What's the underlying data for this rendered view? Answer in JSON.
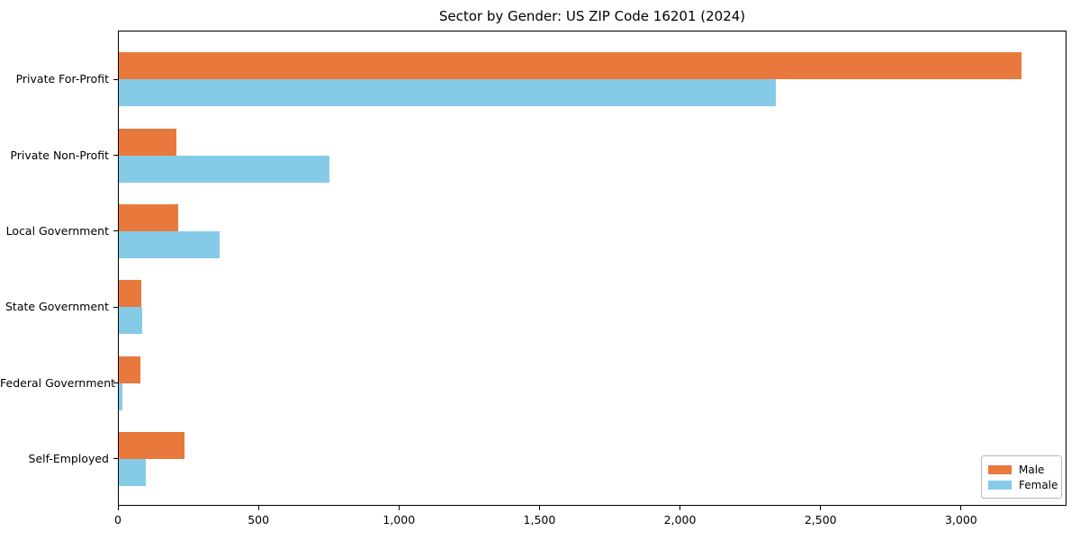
{
  "chart_data": {
    "type": "bar",
    "orientation": "horizontal",
    "title": "Sector by Gender: US ZIP Code 16201 (2024)",
    "categories": [
      "Private For-Profit",
      "Private Non-Profit",
      "Local Government",
      "State Government",
      "Federal Government",
      "Self-Employed"
    ],
    "series": [
      {
        "name": "Male",
        "color": "#e8783c",
        "values": [
          3214,
          209,
          216,
          82,
          81,
          238
        ]
      },
      {
        "name": "Female",
        "color": "#85cbe8",
        "values": [
          2341,
          753,
          363,
          85,
          17,
          99
        ]
      }
    ],
    "xlabel": "",
    "ylabel": "",
    "xlim": [
      0,
      3375
    ],
    "xticks": [
      0,
      500,
      1000,
      1500,
      2000,
      2500,
      3000
    ],
    "xtick_labels": [
      "0",
      "500",
      "1,000",
      "1,500",
      "2,000",
      "2,500",
      "3,000"
    ],
    "grid": false,
    "legend_position": "lower right"
  },
  "colors": {
    "background": "#ffffff",
    "axis": "#000000",
    "male": "#e8783c",
    "female": "#85cbe8",
    "legend_border": "#b7b7b7"
  }
}
